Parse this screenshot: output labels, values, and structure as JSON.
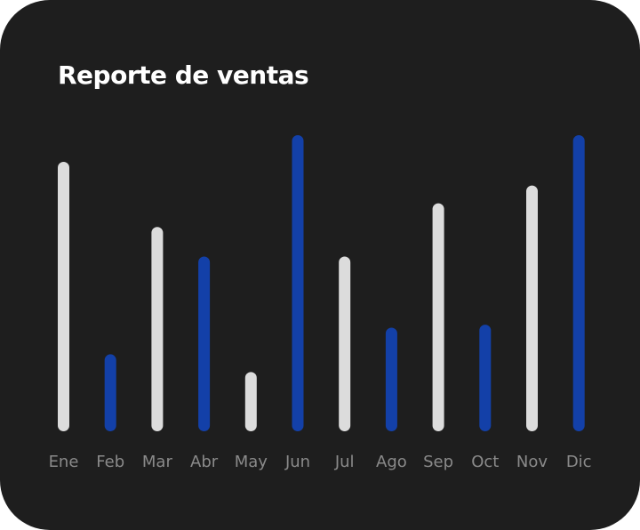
{
  "chart_data": {
    "type": "bar",
    "title": "Reporte de ventas",
    "xlabel": "",
    "ylabel": "",
    "categories": [
      "Ene",
      "Feb",
      "Mar",
      "Abr",
      "May",
      "Jun",
      "Jul",
      "Ago",
      "Sep",
      "Oct",
      "Nov",
      "Dic"
    ],
    "values": [
      91,
      26,
      69,
      59,
      20,
      100,
      59,
      35,
      77,
      36,
      83,
      100
    ],
    "ylim": [
      0,
      100
    ],
    "grid": false,
    "legend": "none",
    "colors": {
      "background": "#1e1e1e",
      "bar_light": "#dcdcdc",
      "bar_accent": "#1340a8",
      "title": "#ffffff",
      "tick_label": "#8a8a8a"
    },
    "bar_color_pattern": [
      "light",
      "accent",
      "light",
      "accent",
      "light",
      "accent",
      "light",
      "accent",
      "light",
      "accent",
      "light",
      "accent"
    ]
  }
}
